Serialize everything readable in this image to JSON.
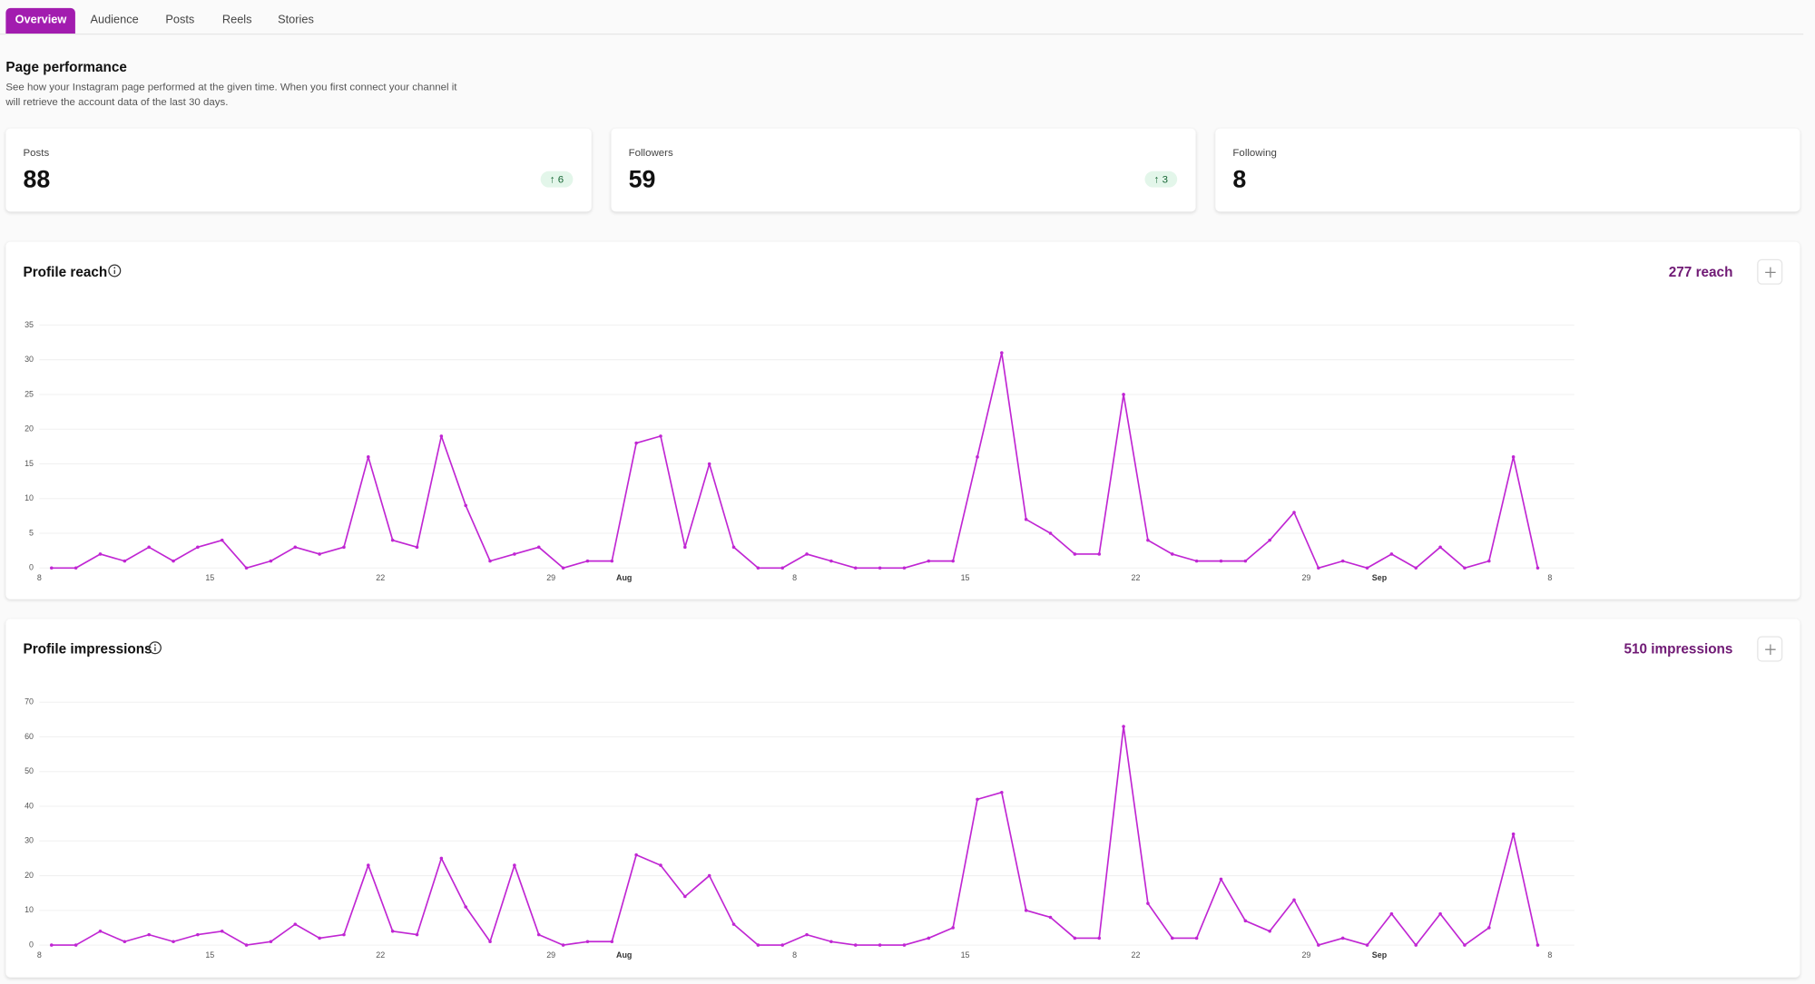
{
  "tabs": [
    "Overview",
    "Audience",
    "Posts",
    "Reels",
    "Stories"
  ],
  "header": {
    "title": "Page performance",
    "description": [
      "See how your Instagram page performed at the given time. When you first connect your channel it",
      "will retrieve the account data of the last 30 days."
    ]
  },
  "stats": [
    {
      "label": "Posts",
      "value": 88,
      "change": 6
    },
    {
      "label": "Followers",
      "value": 59,
      "change": 3
    },
    {
      "label": "Following",
      "value": 8
    }
  ],
  "chart_data": [
    {
      "type": "line",
      "title": "Profile reach",
      "total_label": "277 reach",
      "color": "#c026d3",
      "grid": true,
      "x": [
        0.5,
        1.5,
        2.5,
        3.5,
        4.5,
        5.5,
        6.5,
        7.5,
        8.5,
        9.5,
        10.5,
        11.5,
        12.5,
        13.5,
        14.5,
        15.5,
        16.5,
        17.5,
        18.5,
        19.5,
        20.5,
        21.5,
        22.5,
        23.5,
        24.5,
        25.5,
        26.5,
        27.5,
        28.5,
        29.5,
        30.5,
        31.5,
        32.5,
        33.5,
        34.5,
        35.5,
        36.5,
        37.5,
        38.5,
        39.5,
        40.5,
        41.5,
        42.5,
        43.5,
        44.5,
        45.5,
        46.5,
        47.5,
        48.5,
        49.5,
        50.5,
        51.5,
        52.5,
        53.5,
        54.5,
        55.5,
        56.5,
        57.5,
        58.5,
        59.5,
        60.5,
        61.5
      ],
      "values": [
        0,
        0,
        2,
        1,
        3,
        1,
        3,
        4,
        0,
        1,
        3,
        2,
        3,
        16,
        4,
        3,
        19,
        9,
        1,
        2,
        3,
        0,
        1,
        1,
        18,
        19,
        3,
        15,
        3,
        0,
        0,
        2,
        1,
        0,
        0,
        0,
        1,
        1,
        16,
        31,
        7,
        5,
        2,
        2,
        25,
        4,
        2,
        1,
        1,
        1,
        4,
        8,
        0,
        1,
        0,
        2,
        0,
        3,
        0,
        1,
        16,
        0
      ],
      "xlim": [
        0,
        62
      ],
      "xticks": [
        {
          "value": 0,
          "label": "8"
        },
        {
          "value": 7,
          "label": "15"
        },
        {
          "value": 14,
          "label": "22"
        },
        {
          "value": 21,
          "label": "29"
        },
        {
          "value": 24,
          "label": "Aug"
        },
        {
          "value": 31,
          "label": "8"
        },
        {
          "value": 38,
          "label": "15"
        },
        {
          "value": 45,
          "label": "22"
        },
        {
          "value": 52,
          "label": "29"
        },
        {
          "value": 55,
          "label": "Sep"
        },
        {
          "value": 62,
          "label": "8"
        }
      ],
      "ylim": [
        0,
        35
      ],
      "yticks": [
        0,
        5,
        10,
        15,
        20,
        25,
        30,
        35
      ]
    },
    {
      "type": "line",
      "title": "Profile impressions",
      "total_label": "510 impressions",
      "color": "#c026d3",
      "grid": true,
      "x": [
        0.5,
        1.5,
        2.5,
        3.5,
        4.5,
        5.5,
        6.5,
        7.5,
        8.5,
        9.5,
        10.5,
        11.5,
        12.5,
        13.5,
        14.5,
        15.5,
        16.5,
        17.5,
        18.5,
        19.5,
        20.5,
        21.5,
        22.5,
        23.5,
        24.5,
        25.5,
        26.5,
        27.5,
        28.5,
        29.5,
        30.5,
        31.5,
        32.5,
        33.5,
        34.5,
        35.5,
        36.5,
        37.5,
        38.5,
        39.5,
        40.5,
        41.5,
        42.5,
        43.5,
        44.5,
        45.5,
        46.5,
        47.5,
        48.5,
        49.5,
        50.5,
        51.5,
        52.5,
        53.5,
        54.5,
        55.5,
        56.5,
        57.5,
        58.5,
        59.5,
        60.5,
        61.5
      ],
      "values": [
        0,
        0,
        4,
        1,
        3,
        1,
        3,
        4,
        0,
        1,
        6,
        2,
        3,
        23,
        4,
        3,
        25,
        11,
        1,
        23,
        3,
        0,
        1,
        1,
        26,
        23,
        14,
        20,
        6,
        0,
        0,
        3,
        1,
        0,
        0,
        0,
        2,
        5,
        42,
        44,
        10,
        8,
        2,
        2,
        63,
        12,
        2,
        2,
        19,
        7,
        4,
        13,
        0,
        2,
        0,
        9,
        0,
        9,
        0,
        5,
        32,
        0
      ],
      "xlim": [
        0,
        62
      ],
      "xticks": [
        {
          "value": 0,
          "label": "8"
        },
        {
          "value": 7,
          "label": "15"
        },
        {
          "value": 14,
          "label": "22"
        },
        {
          "value": 21,
          "label": "29"
        },
        {
          "value": 24,
          "label": "Aug"
        },
        {
          "value": 31,
          "label": "8"
        },
        {
          "value": 38,
          "label": "15"
        },
        {
          "value": 45,
          "label": "22"
        },
        {
          "value": 52,
          "label": "29"
        },
        {
          "value": 55,
          "label": "Sep"
        },
        {
          "value": 62,
          "label": "8"
        }
      ],
      "ylim": [
        0,
        70
      ],
      "yticks": [
        0,
        10,
        20,
        30,
        40,
        50,
        60,
        70
      ]
    }
  ]
}
